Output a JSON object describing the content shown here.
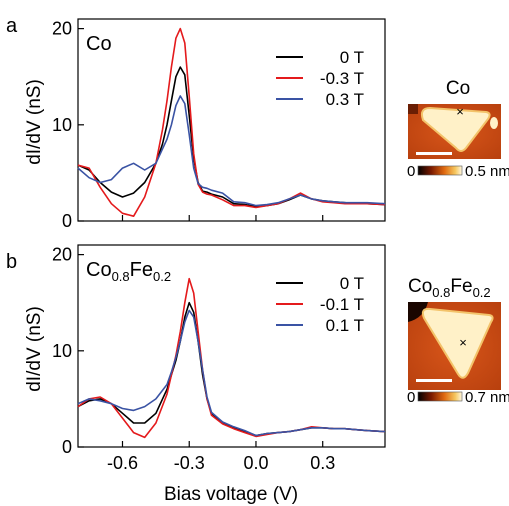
{
  "figure": {
    "xlabel": "Bias voltage (V)"
  },
  "chart_data": [
    {
      "type": "line",
      "panel_label": "a",
      "material": "Co",
      "ylabel": "dI/dV (nS)",
      "xlim": [
        -0.8,
        0.58
      ],
      "ylim": [
        0,
        21
      ],
      "yticks": [
        0,
        10,
        20
      ],
      "xticks": [
        -0.6,
        -0.3,
        0.0,
        0.3
      ],
      "grid": false,
      "legend": "top-right",
      "series": [
        {
          "name": "0 T",
          "color": "#000000",
          "x": [
            -0.8,
            -0.75,
            -0.7,
            -0.65,
            -0.6,
            -0.55,
            -0.5,
            -0.45,
            -0.42,
            -0.4,
            -0.38,
            -0.36,
            -0.34,
            -0.32,
            -0.3,
            -0.28,
            -0.26,
            -0.24,
            -0.22,
            -0.2,
            -0.15,
            -0.1,
            -0.05,
            0.0,
            0.05,
            0.1,
            0.15,
            0.2,
            0.25,
            0.3,
            0.35,
            0.4,
            0.45,
            0.5,
            0.58
          ],
          "y": [
            5.8,
            5.3,
            4.0,
            3.0,
            2.5,
            2.9,
            4.0,
            6.0,
            8.0,
            10.0,
            12.5,
            15.0,
            16.0,
            15.2,
            11.0,
            6.5,
            4.0,
            3.1,
            3.0,
            2.8,
            2.5,
            1.8,
            1.7,
            1.5,
            1.6,
            1.8,
            2.2,
            2.7,
            2.3,
            2.1,
            2.0,
            1.9,
            1.8,
            1.8,
            1.7
          ]
        },
        {
          "name": "-0.3 T",
          "color": "#e41a1c",
          "x": [
            -0.8,
            -0.75,
            -0.7,
            -0.65,
            -0.6,
            -0.55,
            -0.5,
            -0.45,
            -0.42,
            -0.4,
            -0.38,
            -0.36,
            -0.34,
            -0.32,
            -0.3,
            -0.28,
            -0.26,
            -0.24,
            -0.22,
            -0.2,
            -0.15,
            -0.1,
            -0.05,
            0.0,
            0.05,
            0.1,
            0.15,
            0.2,
            0.25,
            0.3,
            0.35,
            0.4,
            0.45,
            0.5,
            0.58
          ],
          "y": [
            5.8,
            5.5,
            3.5,
            1.8,
            0.8,
            0.5,
            2.5,
            6.0,
            9.5,
            12.5,
            16.0,
            19.0,
            20.0,
            18.5,
            13.0,
            7.0,
            3.8,
            3.0,
            2.8,
            2.7,
            2.2,
            1.6,
            1.6,
            1.4,
            1.6,
            1.8,
            2.3,
            2.9,
            2.3,
            2.0,
            1.9,
            1.8,
            1.8,
            1.8,
            1.7
          ]
        },
        {
          "name": "0.3 T",
          "color": "#3a53a4",
          "x": [
            -0.8,
            -0.75,
            -0.7,
            -0.65,
            -0.6,
            -0.55,
            -0.5,
            -0.45,
            -0.42,
            -0.4,
            -0.38,
            -0.36,
            -0.34,
            -0.32,
            -0.3,
            -0.28,
            -0.26,
            -0.24,
            -0.22,
            -0.2,
            -0.15,
            -0.1,
            -0.05,
            0.0,
            0.05,
            0.1,
            0.15,
            0.2,
            0.25,
            0.3,
            0.35,
            0.4,
            0.45,
            0.5,
            0.58
          ],
          "y": [
            5.5,
            4.5,
            4.0,
            4.3,
            5.5,
            6.0,
            5.3,
            6.0,
            7.5,
            8.5,
            10.0,
            12.0,
            13.0,
            12.2,
            9.0,
            5.5,
            3.9,
            3.5,
            3.4,
            3.2,
            2.9,
            2.0,
            1.9,
            1.6,
            1.7,
            1.9,
            2.3,
            2.7,
            2.3,
            2.1,
            2.0,
            1.9,
            1.9,
            1.9,
            1.8
          ]
        }
      ],
      "inset": {
        "title": "Co",
        "colorbar_min": "0",
        "colorbar_max": "0.5 nm",
        "marker": "×"
      }
    },
    {
      "type": "line",
      "panel_label": "b",
      "material_base": "Co",
      "material_sub1": "0.8",
      "material_mid": "Fe",
      "material_sub2": "0.2",
      "ylabel": "dI/dV (nS)",
      "xlim": [
        -0.8,
        0.58
      ],
      "ylim": [
        0,
        21
      ],
      "yticks": [
        0,
        10,
        20
      ],
      "xticks": [
        -0.6,
        -0.3,
        0.0,
        0.3
      ],
      "xticklabels": [
        "-0.6",
        "-0.3",
        "0.0",
        "0.3"
      ],
      "grid": false,
      "legend": "top-right",
      "series": [
        {
          "name": "0 T",
          "color": "#000000",
          "x": [
            -0.8,
            -0.75,
            -0.7,
            -0.65,
            -0.6,
            -0.55,
            -0.5,
            -0.45,
            -0.4,
            -0.38,
            -0.36,
            -0.34,
            -0.32,
            -0.3,
            -0.28,
            -0.26,
            -0.24,
            -0.22,
            -0.2,
            -0.15,
            -0.1,
            -0.05,
            0.0,
            0.05,
            0.1,
            0.15,
            0.2,
            0.25,
            0.3,
            0.35,
            0.4,
            0.45,
            0.5,
            0.58
          ],
          "y": [
            4.2,
            4.8,
            5.0,
            4.5,
            3.5,
            2.5,
            2.5,
            3.5,
            6.0,
            7.5,
            9.0,
            11.0,
            13.5,
            15.0,
            14.0,
            11.0,
            7.5,
            5.0,
            3.5,
            2.5,
            2.0,
            1.6,
            1.2,
            1.4,
            1.5,
            1.6,
            1.8,
            2.0,
            2.0,
            1.9,
            1.9,
            1.8,
            1.7,
            1.6
          ]
        },
        {
          "name": "-0.1 T",
          "color": "#e41a1c",
          "x": [
            -0.8,
            -0.75,
            -0.7,
            -0.65,
            -0.6,
            -0.55,
            -0.5,
            -0.45,
            -0.4,
            -0.38,
            -0.36,
            -0.34,
            -0.32,
            -0.3,
            -0.28,
            -0.26,
            -0.24,
            -0.22,
            -0.2,
            -0.15,
            -0.1,
            -0.05,
            0.0,
            0.05,
            0.1,
            0.15,
            0.2,
            0.25,
            0.3,
            0.35,
            0.4,
            0.45,
            0.5,
            0.58
          ],
          "y": [
            4.2,
            5.0,
            5.2,
            4.5,
            3.0,
            1.5,
            1.0,
            2.5,
            5.5,
            7.5,
            9.5,
            12.0,
            15.0,
            17.5,
            16.0,
            12.0,
            8.0,
            5.0,
            3.3,
            2.4,
            1.9,
            1.5,
            1.1,
            1.3,
            1.5,
            1.6,
            1.8,
            2.1,
            2.0,
            1.9,
            1.9,
            1.8,
            1.7,
            1.6
          ]
        },
        {
          "name": "0.1 T",
          "color": "#3a53a4",
          "x": [
            -0.8,
            -0.75,
            -0.7,
            -0.65,
            -0.6,
            -0.55,
            -0.5,
            -0.45,
            -0.4,
            -0.38,
            -0.36,
            -0.34,
            -0.32,
            -0.3,
            -0.28,
            -0.26,
            -0.24,
            -0.22,
            -0.2,
            -0.15,
            -0.1,
            -0.05,
            0.0,
            0.05,
            0.1,
            0.15,
            0.2,
            0.25,
            0.3,
            0.35,
            0.4,
            0.45,
            0.5,
            0.58
          ],
          "y": [
            4.5,
            5.0,
            4.8,
            4.5,
            4.0,
            3.8,
            4.2,
            5.0,
            6.5,
            7.8,
            9.3,
            11.0,
            13.0,
            14.2,
            13.5,
            11.0,
            8.0,
            5.2,
            3.6,
            2.6,
            2.1,
            1.7,
            1.2,
            1.4,
            1.5,
            1.6,
            1.8,
            2.0,
            2.0,
            1.9,
            1.9,
            1.8,
            1.7,
            1.6
          ]
        }
      ],
      "inset": {
        "title_base": "Co",
        "title_sub1": "0.8",
        "title_mid": "Fe",
        "title_sub2": "0.2",
        "colorbar_min": "0",
        "colorbar_max": "0.7 nm",
        "marker": "×"
      }
    }
  ]
}
